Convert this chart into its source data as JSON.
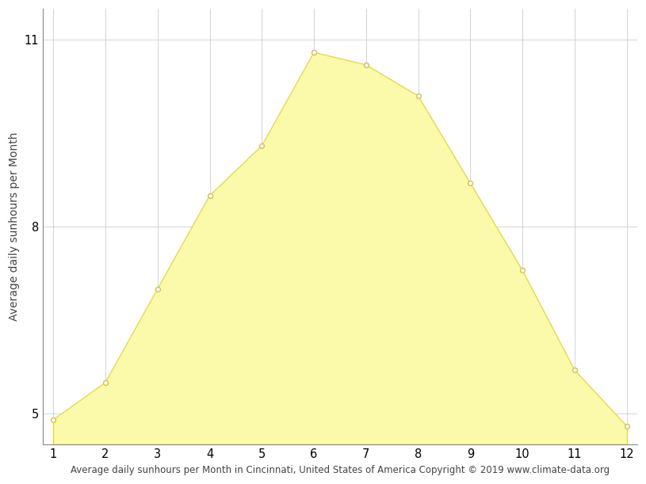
{
  "x": [
    1,
    2,
    3,
    4,
    5,
    6,
    7,
    8,
    9,
    10,
    11,
    12
  ],
  "y": [
    4.9,
    5.5,
    7.0,
    8.5,
    9.3,
    10.8,
    10.6,
    10.1,
    8.7,
    7.3,
    5.7,
    4.8
  ],
  "fill_color": "#FAFAAA",
  "line_color": "#E8D84A",
  "marker_facecolor": "white",
  "marker_edgecolor": "#D4C050",
  "xlabel": "Average daily sunhours per Month in Cincinnati, United States of America Copyright © 2019 www.climate-data.org",
  "ylabel": "Average daily sunhours per Month",
  "xlim": [
    0.8,
    12.2
  ],
  "ylim": [
    4.5,
    11.5
  ],
  "yticks": [
    5,
    8,
    11
  ],
  "xticks": [
    1,
    2,
    3,
    4,
    5,
    6,
    7,
    8,
    9,
    10,
    11,
    12
  ],
  "grid_color": "#cccccc",
  "background_color": "#ffffff",
  "xlabel_fontsize": 8.5,
  "ylabel_fontsize": 10,
  "tick_fontsize": 10.5,
  "figwidth": 8.15,
  "figheight": 6.11,
  "dpi": 100
}
